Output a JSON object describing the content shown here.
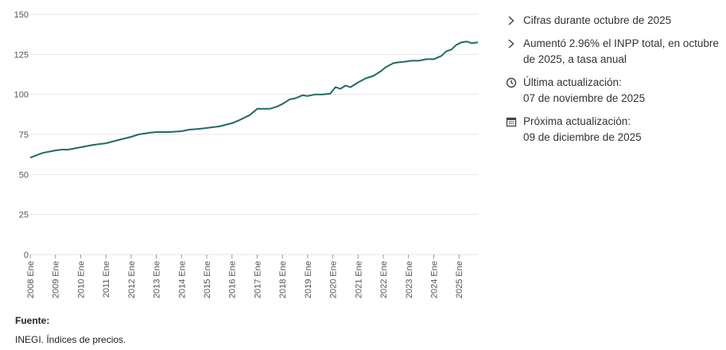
{
  "chart_data": {
    "type": "line",
    "title": "",
    "xlabel": "",
    "ylabel": "",
    "ylim": [
      0,
      150
    ],
    "yticks": [
      0,
      25,
      50,
      75,
      100,
      125,
      150
    ],
    "x_start_year": 2008,
    "x_end_year": 2025,
    "x_last_month": 10,
    "xtick_labels": [
      "2008 Ene",
      "2009 Ene",
      "2010 Ene",
      "2011 Ene",
      "2012 Ene",
      "2013 Ene",
      "2014 Ene",
      "2015 Ene",
      "2016 Ene",
      "2017 Ene",
      "2018 Ene",
      "2019 Ene",
      "2020 Ene",
      "2021 Ene",
      "2022 Ene",
      "2023 Ene",
      "2024 Ene",
      "2025 Ene"
    ],
    "series": [
      {
        "name": "INPP total",
        "color": "#1f6b66",
        "points": [
          [
            2008.0,
            60.5
          ],
          [
            2008.5,
            63.5
          ],
          [
            2009.0,
            65.0
          ],
          [
            2009.25,
            65.5
          ],
          [
            2009.5,
            65.5
          ],
          [
            2010.0,
            67.0
          ],
          [
            2010.5,
            68.5
          ],
          [
            2011.0,
            69.5
          ],
          [
            2011.5,
            71.5
          ],
          [
            2012.0,
            73.5
          ],
          [
            2012.3,
            75.0
          ],
          [
            2012.7,
            76.0
          ],
          [
            2013.0,
            76.5
          ],
          [
            2013.5,
            76.5
          ],
          [
            2014.0,
            77.0
          ],
          [
            2014.3,
            78.0
          ],
          [
            2014.7,
            78.5
          ],
          [
            2015.0,
            79.0
          ],
          [
            2015.5,
            80.0
          ],
          [
            2016.0,
            82.0
          ],
          [
            2016.3,
            84.0
          ],
          [
            2016.7,
            87.0
          ],
          [
            2017.0,
            91.0
          ],
          [
            2017.5,
            91.0
          ],
          [
            2017.8,
            92.5
          ],
          [
            2018.0,
            94.0
          ],
          [
            2018.3,
            97.0
          ],
          [
            2018.5,
            97.5
          ],
          [
            2018.8,
            99.5
          ],
          [
            2019.0,
            99.0
          ],
          [
            2019.3,
            100.0
          ],
          [
            2019.6,
            100.0
          ],
          [
            2019.9,
            100.5
          ],
          [
            2020.1,
            104.5
          ],
          [
            2020.3,
            103.5
          ],
          [
            2020.5,
            105.5
          ],
          [
            2020.7,
            104.5
          ],
          [
            2021.0,
            107.5
          ],
          [
            2021.3,
            110.0
          ],
          [
            2021.6,
            111.5
          ],
          [
            2021.9,
            114.5
          ],
          [
            2022.1,
            117.0
          ],
          [
            2022.4,
            119.5
          ],
          [
            2022.6,
            120.0
          ],
          [
            2022.9,
            120.5
          ],
          [
            2023.1,
            121.0
          ],
          [
            2023.4,
            121.0
          ],
          [
            2023.7,
            122.0
          ],
          [
            2024.0,
            122.0
          ],
          [
            2024.3,
            124.0
          ],
          [
            2024.5,
            127.0
          ],
          [
            2024.7,
            128.0
          ],
          [
            2024.9,
            131.0
          ],
          [
            2025.1,
            132.5
          ],
          [
            2025.3,
            133.0
          ],
          [
            2025.5,
            132.0
          ],
          [
            2025.75,
            132.5
          ]
        ]
      }
    ]
  },
  "sidebar": {
    "items": [
      {
        "icon": "chevron-right-icon",
        "text": "Cifras durante octubre de 2025"
      },
      {
        "icon": "chevron-right-icon",
        "text": "Aumentó 2.96% el INPP total, en octubre de 2025, a tasa anual"
      },
      {
        "icon": "clock-icon",
        "text": "Última actualización:",
        "text2": "07 de noviembre de 2025"
      },
      {
        "icon": "calendar-icon",
        "text": "Próxima actualización:",
        "text2": "09 de diciembre de 2025"
      }
    ]
  },
  "source": {
    "label": "Fuente:",
    "text": "INEGI. Índices de precios."
  },
  "colors": {
    "line": "#1f6b66",
    "grid": "#e6e6e6",
    "icon": "#444444"
  }
}
